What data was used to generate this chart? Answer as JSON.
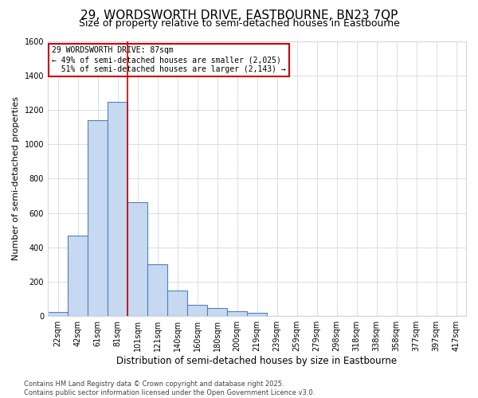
{
  "title": "29, WORDSWORTH DRIVE, EASTBOURNE, BN23 7QP",
  "subtitle": "Size of property relative to semi-detached houses in Eastbourne",
  "xlabel": "Distribution of semi-detached houses by size in Eastbourne",
  "ylabel": "Number of semi-detached properties",
  "categories": [
    "22sqm",
    "42sqm",
    "61sqm",
    "81sqm",
    "101sqm",
    "121sqm",
    "140sqm",
    "160sqm",
    "180sqm",
    "200sqm",
    "219sqm",
    "239sqm",
    "259sqm",
    "279sqm",
    "298sqm",
    "318sqm",
    "338sqm",
    "358sqm",
    "377sqm",
    "397sqm",
    "417sqm"
  ],
  "values": [
    25,
    470,
    1140,
    1245,
    665,
    300,
    150,
    65,
    45,
    30,
    20,
    0,
    0,
    0,
    0,
    0,
    0,
    0,
    0,
    0,
    0
  ],
  "bar_color": "#c6d9f0",
  "bar_edge_color": "#4f81bd",
  "grid_color": "#d0d8e8",
  "background_color": "#ffffff",
  "plot_bg_color": "#ffffff",
  "vline_x_index": 3.5,
  "vline_color": "#cc0000",
  "annotation_text": "29 WORDSWORTH DRIVE: 87sqm\n← 49% of semi-detached houses are smaller (2,025)\n  51% of semi-detached houses are larger (2,143) →",
  "annotation_box_color": "#cc0000",
  "ylim": [
    0,
    1600
  ],
  "yticks": [
    0,
    200,
    400,
    600,
    800,
    1000,
    1200,
    1400,
    1600
  ],
  "footer": "Contains HM Land Registry data © Crown copyright and database right 2025.\nContains public sector information licensed under the Open Government Licence v3.0.",
  "title_fontsize": 11,
  "subtitle_fontsize": 9,
  "xlabel_fontsize": 8.5,
  "ylabel_fontsize": 8,
  "tick_fontsize": 7,
  "footer_fontsize": 6
}
